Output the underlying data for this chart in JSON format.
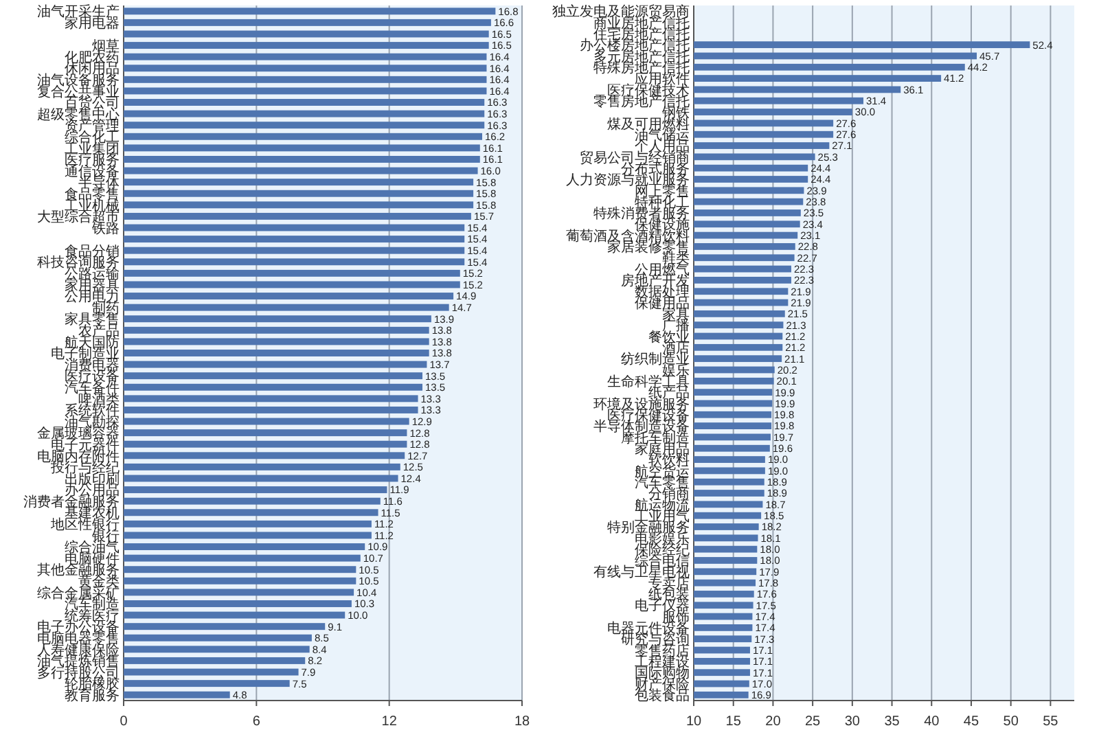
{
  "chart_data": [
    {
      "type": "bar",
      "orientation": "horizontal",
      "color": "#4f75b0",
      "grid": "x",
      "xlim": [
        0,
        18
      ],
      "xticks": [
        0,
        6,
        12,
        18
      ],
      "value_labels": [
        "16.8",
        "16.6",
        "16.5",
        "16.5",
        "16.4",
        "16.4",
        "16.4",
        "16.4",
        "16.3",
        "16.3",
        "16.3",
        "16.2",
        "16.1",
        "16.1",
        "16.0",
        "15.8",
        "15.8",
        "15.8",
        "15.7",
        "15.4",
        "15.4",
        "15.4",
        "15.4",
        "15.2",
        "15.2",
        "14.9",
        "14.7",
        "13.9",
        "13.8",
        "13.8",
        "13.8",
        "13.7",
        "13.5",
        "13.5",
        "13.3",
        "13.3",
        "12.9",
        "12.8",
        "12.8",
        "12.7",
        "12.5",
        "12.4",
        "11.9",
        "11.6",
        "11.5",
        "11.2",
        "11.2",
        "10.9",
        "10.7",
        "10.5",
        "10.5",
        "10.4",
        "10.3",
        "10.0",
        "9.1",
        "8.5",
        "8.4",
        "8.2",
        "7.9",
        "7.5",
        "4.8"
      ],
      "categories": [
        "油气开采生产",
        "家用电器",
        null,
        "烟草",
        "化肥农药",
        "休闲用品",
        "油气设备服务",
        "复合公共事业",
        "百货公司",
        "超级零售中心",
        "资产管理",
        "综合化工",
        "工业集团",
        "医疗服务",
        "通信设备",
        "半导体",
        "食品零售",
        "工业机械",
        "大型综合超市",
        "铁路",
        null,
        "食品分销",
        "科技咨询服务",
        "公路运输",
        "家用器具",
        "公用电力",
        "制药",
        "家具零售",
        "农产品",
        "航天国防",
        "电子制造业",
        "消费电器",
        "医疗设备",
        "汽车备件",
        "啤酒类",
        "系统软件",
        "油气勘探",
        "金属玻璃容器",
        "电子元器件",
        "电脑内存附件",
        "投行与经纪",
        "出版印刷",
        "办公用品",
        "消费者金融服务",
        "基建农机",
        "地区性银行",
        "银行",
        "综合油气",
        "电脑硬件",
        "其他金融服务",
        "黄金类",
        "综合金属采矿",
        "汽车制造",
        "统筹医疗",
        "电子办公设备",
        "电脑电器零售",
        "人寿健康保险",
        "油气提炼销售",
        "多行持股公司",
        "轮胎橡胶",
        "教育服务"
      ],
      "values": [
        16.8,
        16.6,
        16.5,
        16.5,
        16.4,
        16.4,
        16.4,
        16.4,
        16.3,
        16.3,
        16.3,
        16.2,
        16.1,
        16.1,
        16.0,
        15.8,
        15.8,
        15.8,
        15.7,
        15.4,
        15.4,
        15.4,
        15.4,
        15.2,
        15.2,
        14.9,
        14.7,
        13.9,
        13.8,
        13.8,
        13.8,
        13.7,
        13.5,
        13.5,
        13.3,
        13.3,
        12.9,
        12.8,
        12.8,
        12.7,
        12.5,
        12.4,
        11.9,
        11.6,
        11.5,
        11.2,
        11.2,
        10.9,
        10.7,
        10.5,
        10.5,
        10.4,
        10.3,
        10.0,
        9.1,
        8.5,
        8.4,
        8.2,
        7.9,
        7.5,
        4.8
      ]
    },
    {
      "type": "bar",
      "orientation": "horizontal",
      "color": "#4f75b0",
      "grid": "x",
      "xlim": [
        10,
        58
      ],
      "value_labels": [
        null,
        null,
        null,
        "52.4",
        "45.7",
        "44.2",
        "41.2",
        "36.1",
        "31.4",
        "30.0",
        "27.6",
        "27.6",
        "27.1",
        "25.3",
        "24.4",
        "24.4",
        "23.9",
        "23.8",
        "23.5",
        "23.4",
        "23.1",
        "22.8",
        "22.7",
        "22.3",
        "22.3",
        "21.9",
        "21.9",
        "21.5",
        "21.3",
        "21.2",
        "21.2",
        "21.1",
        "20.2",
        "20.1",
        "19.9",
        "19.9",
        "19.8",
        "19.8",
        "19.7",
        "19.6",
        "19.0",
        "19.0",
        "18.9",
        "18.9",
        "18.7",
        "18.5",
        "18.2",
        "18.1",
        "18.0",
        "18.0",
        "17.9",
        "17.8",
        "17.6",
        "17.5",
        "17.4",
        "17.4",
        "17.3",
        "17.1",
        "17.1",
        "17.1",
        "17.0",
        "16.9"
      ],
      "xticks": [
        10,
        15,
        20,
        25,
        30,
        35,
        40,
        45,
        50,
        55
      ],
      "categories": [
        "独立发电及能源贸易商",
        "商业房地产信托",
        "住宅房地产信托",
        "办公楼房地产信托",
        "多元房地产信托",
        "特殊房地产信托",
        "应用软件",
        "医疗保健技术",
        "零售房地产信托",
        "钢铁",
        "煤及可用燃料",
        "油气储运",
        "个人用品",
        "贸易公司与经销商",
        "分布式服务",
        "人力资源与就业服务",
        "网上零售",
        "特种化工",
        "特殊消费者服务",
        "保健设施",
        "葡萄酒及含酒精饮料",
        "家居装修零售",
        "鞋类",
        "公用燃气",
        "房地产开发",
        "数据处理",
        "保健用品",
        "家具",
        "广播",
        "餐饮业",
        "酒店",
        "纺织制造业",
        "娱乐",
        "生命科学工具",
        "纸产品",
        "环境及设施服务",
        "医疗保健设备",
        "半导体制造设备",
        "摩托车制造",
        "家庭用品",
        "软饮料",
        "航空货运",
        "汽车零售",
        "分销商",
        "航运物流",
        "工业用气",
        "特别金融服务",
        "电影娱乐",
        "保险经纪",
        "综合电信",
        "有线与卫星电视",
        "专卖店",
        "纸包装",
        "电子仪器",
        "服饰",
        "电器元件设备",
        "研究与咨询",
        "零售药店",
        "工程建设",
        "国际购物",
        "财产保险",
        "包装食品"
      ],
      "values": [
        null,
        null,
        null,
        52.4,
        45.7,
        44.2,
        41.2,
        36.1,
        31.4,
        30.0,
        27.6,
        27.6,
        27.1,
        25.3,
        24.4,
        24.4,
        23.9,
        23.8,
        23.5,
        23.4,
        23.1,
        22.8,
        22.7,
        22.3,
        22.3,
        21.9,
        21.9,
        21.5,
        21.3,
        21.2,
        21.2,
        21.1,
        20.2,
        20.1,
        19.9,
        19.9,
        19.8,
        19.8,
        19.7,
        19.6,
        19.0,
        19.0,
        18.9,
        18.9,
        18.7,
        18.5,
        18.2,
        18.1,
        18.0,
        18.0,
        17.9,
        17.8,
        17.6,
        17.5,
        17.4,
        17.4,
        17.3,
        17.1,
        17.1,
        17.1,
        17.0,
        16.9
      ]
    }
  ]
}
